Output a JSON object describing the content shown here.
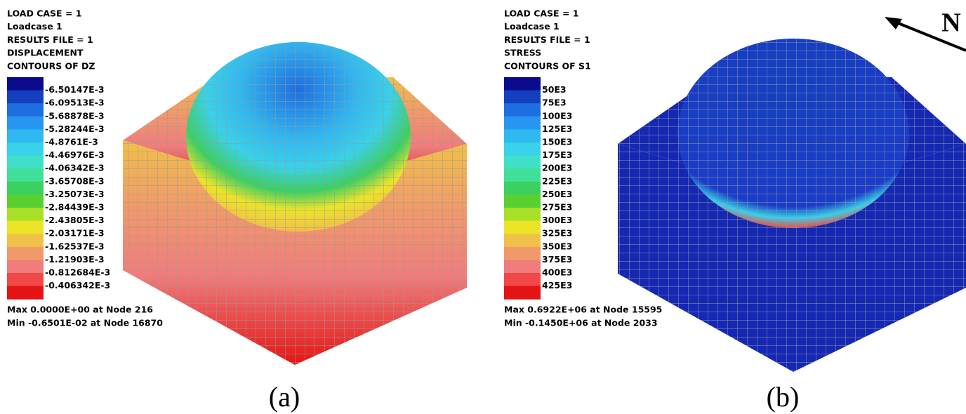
{
  "panels": [
    {
      "header": [
        "LOAD CASE  =     1",
        "Loadcase 1",
        "RESULTS FILE =     1",
        "DISPLACEMENT",
        "CONTOURS OF DZ"
      ],
      "legend_colors": [
        "#0a0a8c",
        "#1440c0",
        "#1e6ee0",
        "#2896f0",
        "#30b8f0",
        "#38d2ea",
        "#40e0c8",
        "#40e09a",
        "#3cd060",
        "#58d030",
        "#a8e028",
        "#ece428",
        "#f0c048",
        "#f09a6a",
        "#f07c7c",
        "#f04848",
        "#e41414"
      ],
      "legend_labels": [
        "-6.50147E-3",
        "-6.09513E-3",
        "-5.68878E-3",
        "-5.28244E-3",
        "-4.8761E-3",
        "-4.46976E-3",
        "-4.06342E-3",
        "-3.65708E-3",
        "-3.25073E-3",
        "-2.84439E-3",
        "-2.43805E-3",
        "-2.03171E-3",
        "-1.62537E-3",
        "-1.21903E-3",
        "-0.812684E-3",
        "-0.406342E-3"
      ],
      "footer": [
        "Max 0.0000E+00 at Node 216",
        "Min -0.6501E-02 at Node 16870"
      ],
      "caption": "(a)"
    },
    {
      "header": [
        "LOAD CASE  =     1",
        "Loadcase 1",
        "RESULTS FILE =     1",
        "STRESS",
        "CONTOURS OF S1"
      ],
      "legend_colors": [
        "#0a0a8c",
        "#1440c0",
        "#1e6ee0",
        "#2896f0",
        "#30b8f0",
        "#38d2ea",
        "#40e0c8",
        "#40e09a",
        "#3cd060",
        "#58d030",
        "#a8e028",
        "#ece428",
        "#f0c048",
        "#f09a6a",
        "#f07c7c",
        "#f04848",
        "#e41414"
      ],
      "legend_labels": [
        "50E3",
        "75E3",
        "100E3",
        "125E3",
        "150E3",
        "175E3",
        "200E3",
        "225E3",
        "250E3",
        "275E3",
        "300E3",
        "325E3",
        "350E3",
        "375E3",
        "400E3",
        "425E3"
      ],
      "footer": [
        "Max 0.6922E+06 at Node 15595",
        "Min -0.1450E+06 at Node 2033"
      ],
      "caption": "(b)"
    }
  ],
  "north_label": "N"
}
